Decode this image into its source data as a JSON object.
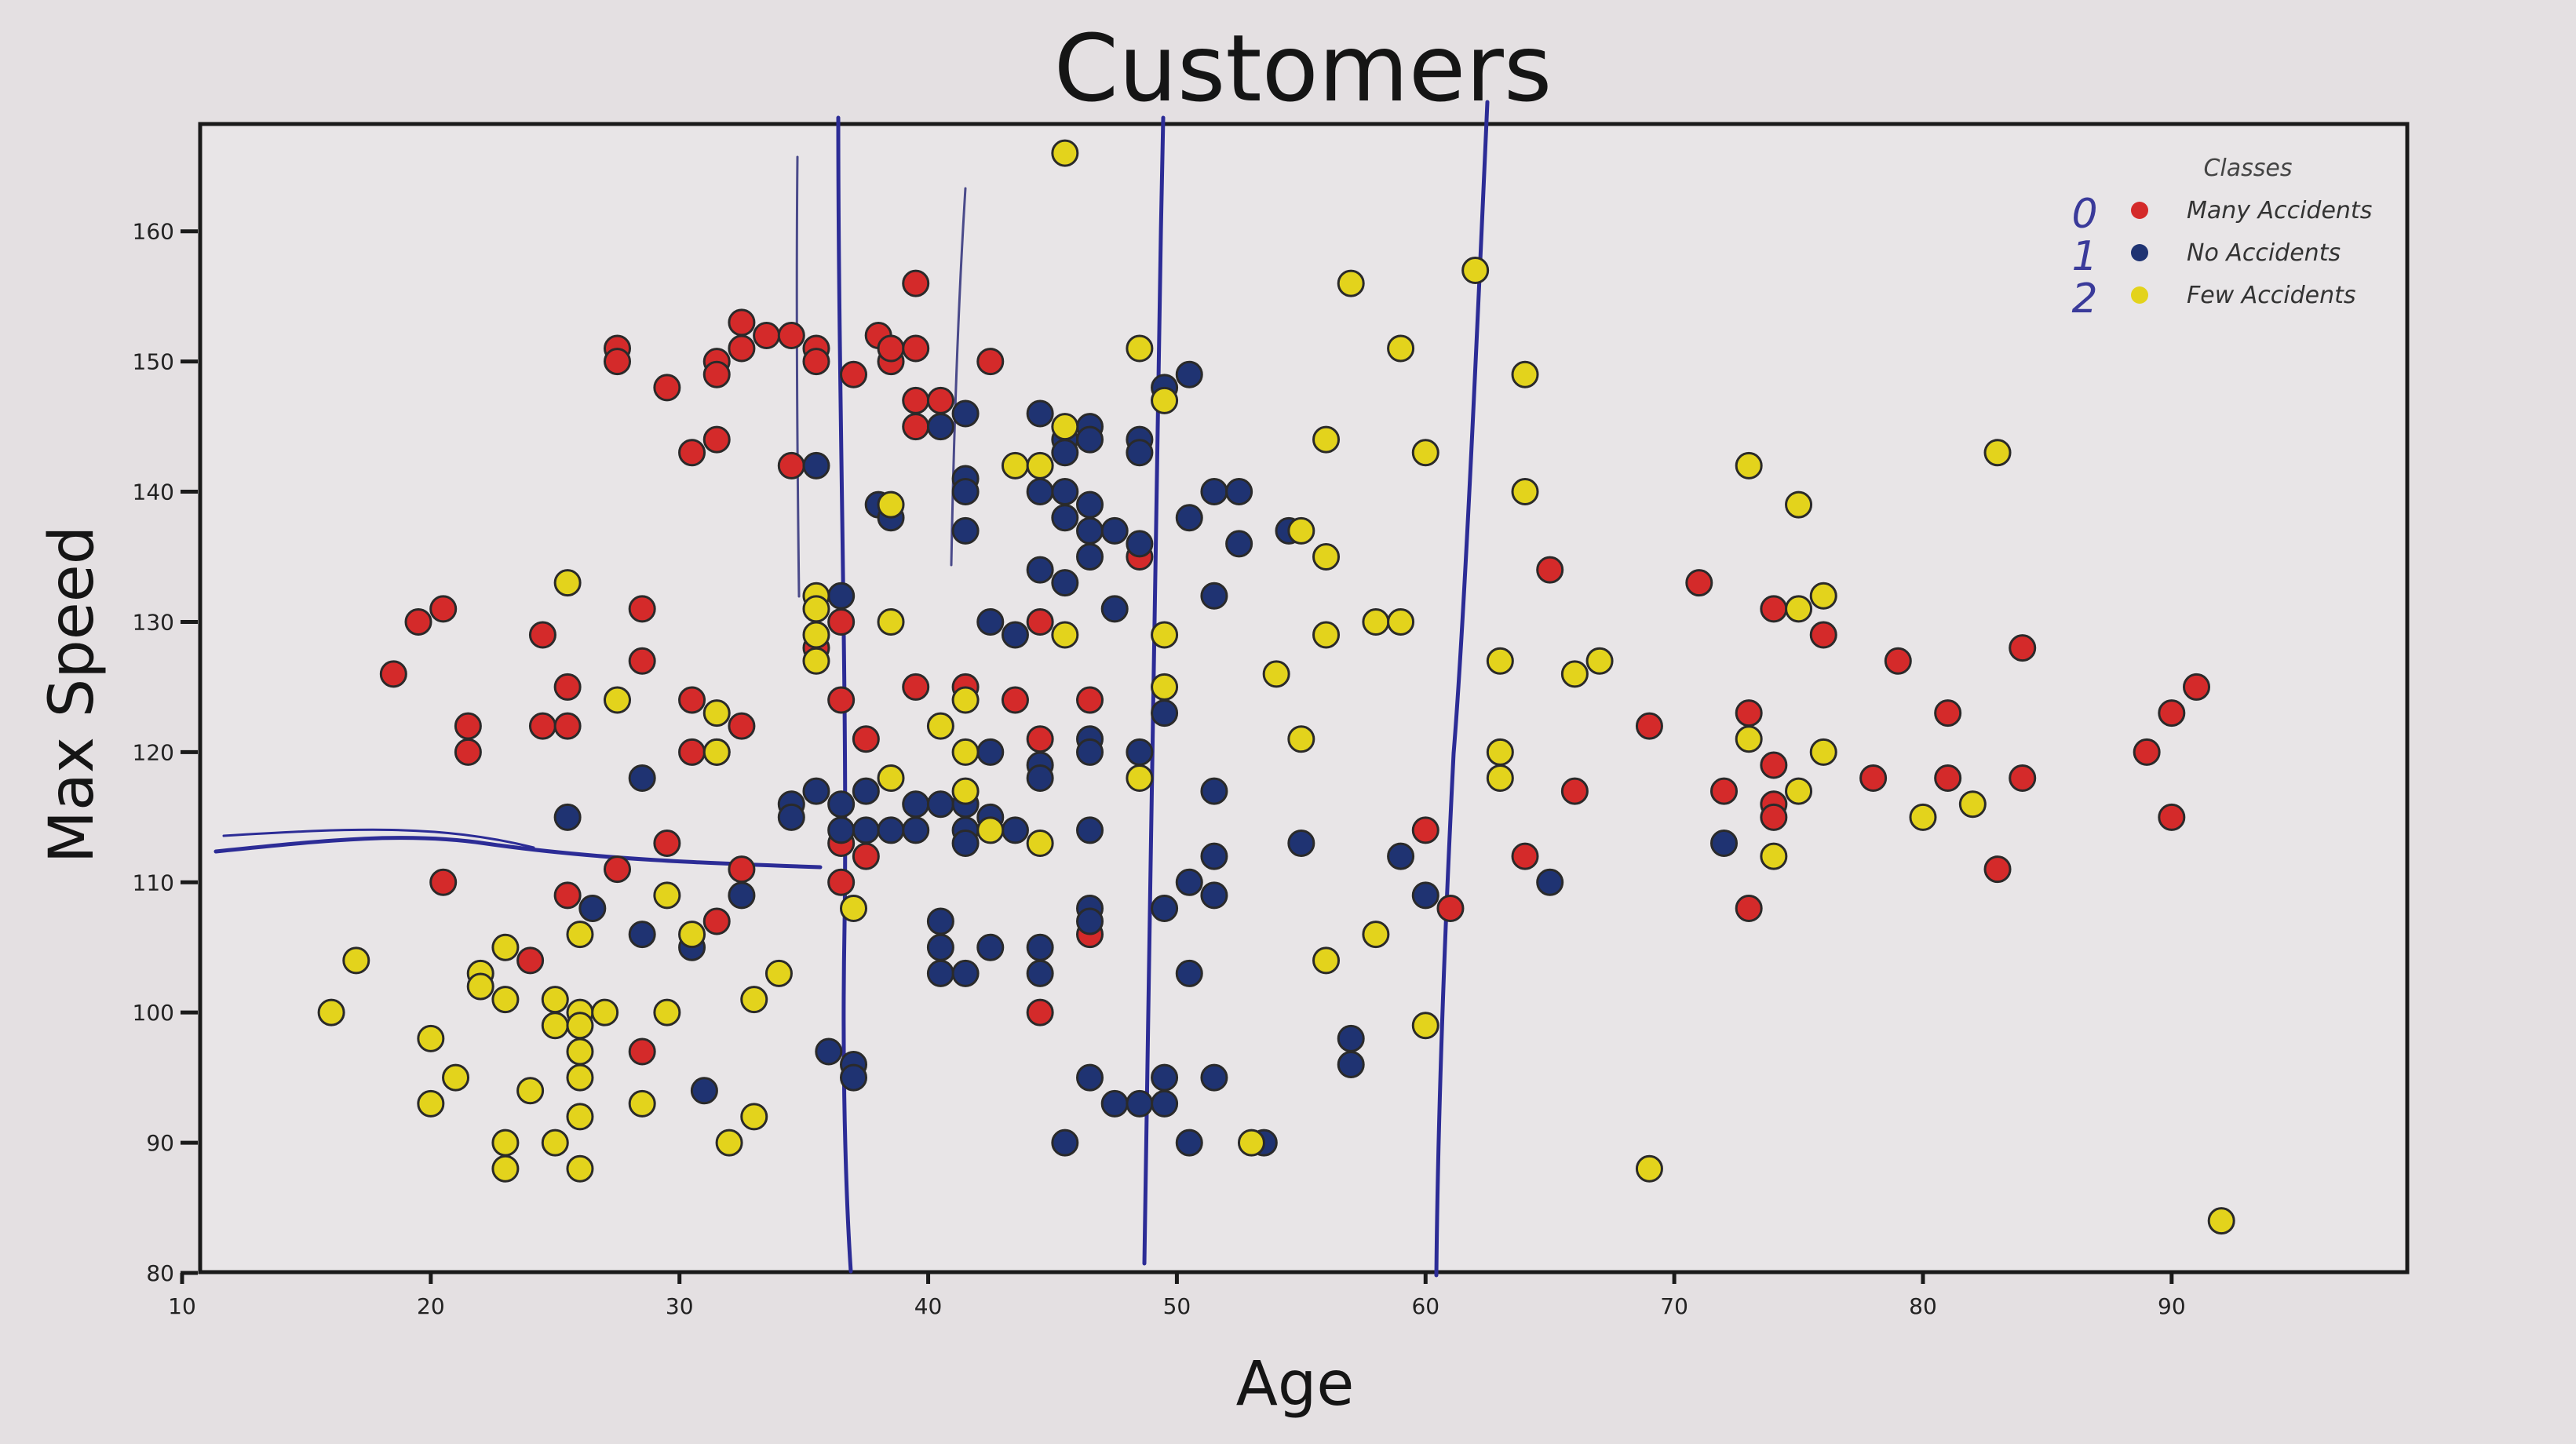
{
  "chart_data": {
    "type": "scatter",
    "title": "Customers",
    "xlabel": "Age",
    "ylabel": "Max Speed",
    "xlim": [
      10,
      99
    ],
    "ylim": [
      80,
      168
    ],
    "xticks": [
      10,
      20,
      30,
      40,
      50,
      60,
      70,
      80,
      90
    ],
    "yticks": [
      80,
      90,
      100,
      110,
      120,
      130,
      140,
      150,
      160
    ],
    "grid": false,
    "legend": {
      "title": "Classes",
      "placement": "top-right",
      "annotations": [
        "0",
        "1",
        "2"
      ]
    },
    "colors": {
      "Many Accidents": "#d42a2a",
      "No Accidents": "#1f3372",
      "Few Accidents": "#e3d31c"
    },
    "series": [
      {
        "name": "Many Accidents",
        "points": [
          [
            18.5,
            126
          ],
          [
            19.5,
            130
          ],
          [
            20.5,
            131
          ],
          [
            21.5,
            122
          ],
          [
            21.5,
            120
          ],
          [
            20.5,
            110
          ],
          [
            24.5,
            129
          ],
          [
            24.5,
            122
          ],
          [
            25.5,
            125
          ],
          [
            25.5,
            122
          ],
          [
            25.5,
            109
          ],
          [
            24,
            104
          ],
          [
            27.5,
            151
          ],
          [
            27.5,
            150
          ],
          [
            27.5,
            111
          ],
          [
            28.5,
            131
          ],
          [
            28.5,
            127
          ],
          [
            28.5,
            97
          ],
          [
            29.5,
            113
          ],
          [
            29.5,
            148
          ],
          [
            30.5,
            143
          ],
          [
            30.5,
            124
          ],
          [
            30.5,
            120
          ],
          [
            31.5,
            144
          ],
          [
            31.5,
            120
          ],
          [
            31.5,
            107
          ],
          [
            32.5,
            122
          ],
          [
            32.5,
            111
          ],
          [
            31.5,
            150
          ],
          [
            31.5,
            149
          ],
          [
            32.5,
            151
          ],
          [
            32.5,
            153
          ],
          [
            33.5,
            152
          ],
          [
            34.5,
            152
          ],
          [
            35.5,
            151
          ],
          [
            35.5,
            150
          ],
          [
            34.5,
            142
          ],
          [
            35.5,
            128
          ],
          [
            36.5,
            130
          ],
          [
            36.5,
            124
          ],
          [
            36.5,
            113
          ],
          [
            36.5,
            110
          ],
          [
            37.5,
            121
          ],
          [
            37.5,
            112
          ],
          [
            37,
            149
          ],
          [
            38,
            152
          ],
          [
            38.5,
            150
          ],
          [
            38.5,
            151
          ],
          [
            39.5,
            151
          ],
          [
            39.5,
            147
          ],
          [
            39.5,
            145
          ],
          [
            39.5,
            156
          ],
          [
            40.5,
            147
          ],
          [
            39.5,
            125
          ],
          [
            41.5,
            125
          ],
          [
            42.5,
            150
          ],
          [
            43.5,
            124
          ],
          [
            44.5,
            130
          ],
          [
            44.5,
            121
          ],
          [
            44.5,
            100
          ],
          [
            46.5,
            124
          ],
          [
            46.5,
            106
          ],
          [
            48.5,
            135
          ],
          [
            60,
            114
          ],
          [
            61,
            108
          ],
          [
            64,
            112
          ],
          [
            65,
            134
          ],
          [
            66,
            117
          ],
          [
            69,
            122
          ],
          [
            71,
            133
          ],
          [
            72,
            117
          ],
          [
            73,
            123
          ],
          [
            73,
            108
          ],
          [
            74,
            131
          ],
          [
            74,
            119
          ],
          [
            74,
            116
          ],
          [
            74,
            115
          ],
          [
            76,
            129
          ],
          [
            78,
            118
          ],
          [
            79,
            127
          ],
          [
            81,
            123
          ],
          [
            81,
            118
          ],
          [
            83,
            111
          ],
          [
            84,
            128
          ],
          [
            84,
            118
          ],
          [
            89,
            120
          ],
          [
            90,
            123
          ],
          [
            90,
            115
          ],
          [
            91,
            125
          ]
        ]
      },
      {
        "name": "No Accidents",
        "points": [
          [
            25.5,
            115
          ],
          [
            26.5,
            108
          ],
          [
            28.5,
            106
          ],
          [
            28.5,
            118
          ],
          [
            30.5,
            105
          ],
          [
            31,
            94
          ],
          [
            32.5,
            109
          ],
          [
            34.5,
            116
          ],
          [
            34.5,
            115
          ],
          [
            35.5,
            142
          ],
          [
            35.5,
            117
          ],
          [
            36.5,
            132
          ],
          [
            36.5,
            116
          ],
          [
            36.5,
            114
          ],
          [
            36,
            97
          ],
          [
            37,
            96
          ],
          [
            37,
            95
          ],
          [
            37.5,
            117
          ],
          [
            37.5,
            114
          ],
          [
            38,
            139
          ],
          [
            38.5,
            114
          ],
          [
            38.5,
            138
          ],
          [
            39.5,
            116
          ],
          [
            39.5,
            114
          ],
          [
            40.5,
            116
          ],
          [
            40.5,
            107
          ],
          [
            40.5,
            105
          ],
          [
            40.5,
            103
          ],
          [
            41.5,
            116
          ],
          [
            41.5,
            114
          ],
          [
            41.5,
            103
          ],
          [
            40.5,
            145
          ],
          [
            41.5,
            146
          ],
          [
            41.5,
            141
          ],
          [
            41.5,
            140
          ],
          [
            41.5,
            137
          ],
          [
            41.5,
            113
          ],
          [
            42.5,
            130
          ],
          [
            42.5,
            120
          ],
          [
            42.5,
            115
          ],
          [
            42.5,
            105
          ],
          [
            43.5,
            129
          ],
          [
            43.5,
            114
          ],
          [
            44.5,
            146
          ],
          [
            44.5,
            140
          ],
          [
            44.5,
            134
          ],
          [
            44.5,
            119
          ],
          [
            44.5,
            118
          ],
          [
            44.5,
            105
          ],
          [
            44.5,
            103
          ],
          [
            45.5,
            133
          ],
          [
            45.5,
            144
          ],
          [
            45.5,
            143
          ],
          [
            45.5,
            140
          ],
          [
            45.5,
            138
          ],
          [
            45.5,
            90
          ],
          [
            46.5,
            145
          ],
          [
            46.5,
            144
          ],
          [
            46.5,
            139
          ],
          [
            46.5,
            137
          ],
          [
            46.5,
            135
          ],
          [
            46.5,
            121
          ],
          [
            46.5,
            120
          ],
          [
            46.5,
            114
          ],
          [
            46.5,
            108
          ],
          [
            46.5,
            107
          ],
          [
            46.5,
            95
          ],
          [
            47.5,
            137
          ],
          [
            47.5,
            131
          ],
          [
            47.5,
            93
          ],
          [
            48.5,
            136
          ],
          [
            48.5,
            120
          ],
          [
            48.5,
            144
          ],
          [
            48.5,
            143
          ],
          [
            48.5,
            93
          ],
          [
            49.5,
            123
          ],
          [
            49.5,
            108
          ],
          [
            49.5,
            95
          ],
          [
            49.5,
            93
          ],
          [
            49.5,
            148
          ],
          [
            50.5,
            149
          ],
          [
            50.5,
            138
          ],
          [
            50.5,
            110
          ],
          [
            50.5,
            103
          ],
          [
            50.5,
            90
          ],
          [
            51.5,
            140
          ],
          [
            51.5,
            132
          ],
          [
            51.5,
            117
          ],
          [
            51.5,
            112
          ],
          [
            51.5,
            109
          ],
          [
            51.5,
            95
          ],
          [
            52.5,
            140
          ],
          [
            52.5,
            136
          ],
          [
            53.5,
            90
          ],
          [
            54.5,
            137
          ],
          [
            55,
            113
          ],
          [
            57,
            98
          ],
          [
            57,
            96
          ],
          [
            59,
            112
          ],
          [
            60,
            109
          ],
          [
            65,
            110
          ],
          [
            72,
            113
          ]
        ]
      },
      {
        "name": "Few Accidents",
        "points": [
          [
            16,
            100
          ],
          [
            17,
            104
          ],
          [
            20,
            98
          ],
          [
            20,
            93
          ],
          [
            21,
            95
          ],
          [
            22,
            103
          ],
          [
            22,
            102
          ],
          [
            23,
            105
          ],
          [
            23,
            101
          ],
          [
            23,
            90
          ],
          [
            23,
            88
          ],
          [
            24,
            94
          ],
          [
            25,
            101
          ],
          [
            25,
            99
          ],
          [
            25,
            90
          ],
          [
            25.5,
            133
          ],
          [
            26,
            100
          ],
          [
            26,
            99
          ],
          [
            26,
            97
          ],
          [
            26,
            95
          ],
          [
            26,
            92
          ],
          [
            26,
            88
          ],
          [
            26,
            106
          ],
          [
            27,
            100
          ],
          [
            27.5,
            124
          ],
          [
            28.5,
            93
          ],
          [
            29.5,
            100
          ],
          [
            29.5,
            109
          ],
          [
            30.5,
            106
          ],
          [
            31.5,
            123
          ],
          [
            31.5,
            120
          ],
          [
            32,
            90
          ],
          [
            33,
            101
          ],
          [
            33,
            92
          ],
          [
            34,
            103
          ],
          [
            35.5,
            132
          ],
          [
            35.5,
            131
          ],
          [
            35.5,
            129
          ],
          [
            35.5,
            127
          ],
          [
            37,
            108
          ],
          [
            38.5,
            139
          ],
          [
            38.5,
            130
          ],
          [
            38.5,
            118
          ],
          [
            40.5,
            122
          ],
          [
            41.5,
            124
          ],
          [
            41.5,
            120
          ],
          [
            41.5,
            117
          ],
          [
            42.5,
            114
          ],
          [
            43.5,
            142
          ],
          [
            44.5,
            142
          ],
          [
            44.5,
            113
          ],
          [
            45.5,
            145
          ],
          [
            45.5,
            166
          ],
          [
            45.5,
            129
          ],
          [
            48.5,
            151
          ],
          [
            48.5,
            118
          ],
          [
            49.5,
            147
          ],
          [
            49.5,
            129
          ],
          [
            49.5,
            125
          ],
          [
            53,
            90
          ],
          [
            54,
            126
          ],
          [
            55,
            121
          ],
          [
            55,
            137
          ],
          [
            56,
            144
          ],
          [
            56,
            135
          ],
          [
            56,
            129
          ],
          [
            56,
            104
          ],
          [
            57,
            156
          ],
          [
            58,
            130
          ],
          [
            58,
            106
          ],
          [
            59,
            130
          ],
          [
            59,
            151
          ],
          [
            60,
            143
          ],
          [
            60,
            99
          ],
          [
            62,
            157
          ],
          [
            63,
            127
          ],
          [
            63,
            120
          ],
          [
            63,
            118
          ],
          [
            64,
            149
          ],
          [
            64,
            140
          ],
          [
            66,
            126
          ],
          [
            67,
            127
          ],
          [
            69,
            88
          ],
          [
            73,
            142
          ],
          [
            73,
            121
          ],
          [
            74,
            112
          ],
          [
            75,
            139
          ],
          [
            75,
            131
          ],
          [
            75,
            117
          ],
          [
            76,
            132
          ],
          [
            76,
            120
          ],
          [
            80,
            115
          ],
          [
            82,
            116
          ],
          [
            83,
            143
          ],
          [
            92,
            84
          ]
        ]
      }
    ]
  }
}
